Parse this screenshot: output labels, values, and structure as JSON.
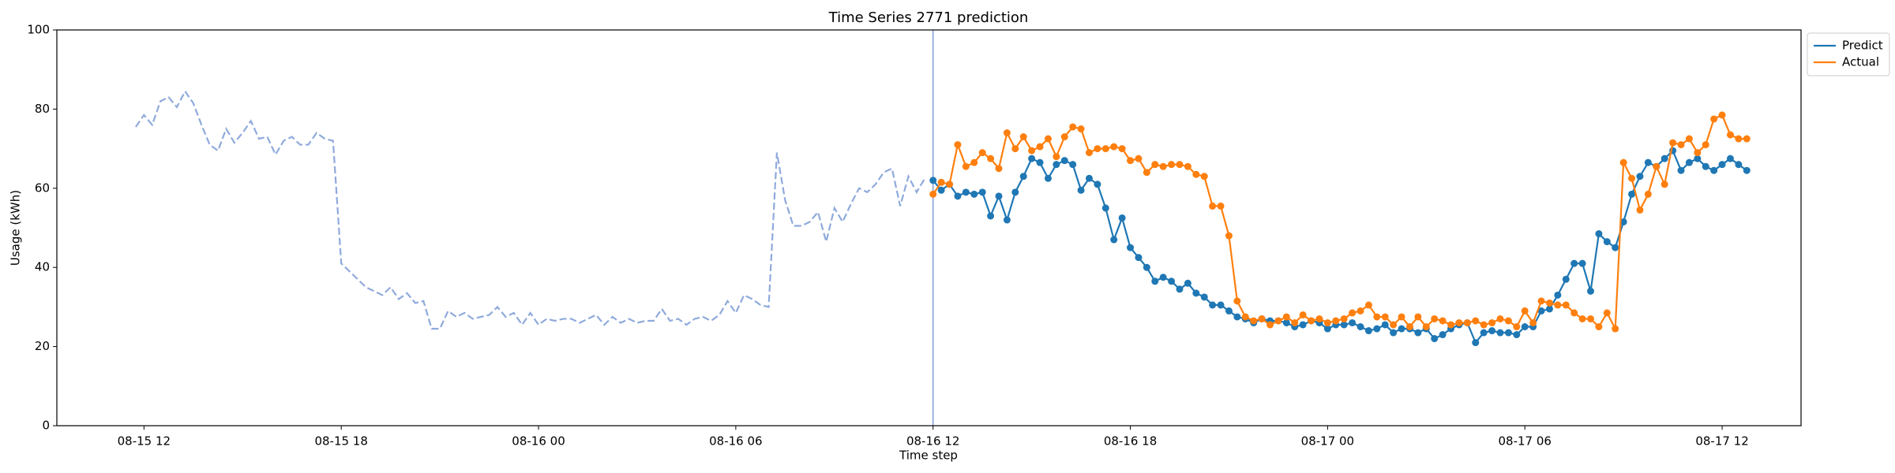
{
  "chart_data": {
    "type": "line",
    "title": "Time Series 2771 prediction",
    "x_label": "Time step",
    "y_label": "Usage (kWh)",
    "xlim": [
      9.35,
      62.4
    ],
    "ylim": [
      0,
      100
    ],
    "yticks": [
      0,
      20,
      40,
      60,
      80,
      100
    ],
    "xticks": [
      {
        "value": 12,
        "label": "08-15 12"
      },
      {
        "value": 18,
        "label": "08-15 18"
      },
      {
        "value": 24,
        "label": "08-16 00"
      },
      {
        "value": 30,
        "label": "08-16 06"
      },
      {
        "value": 36,
        "label": "08-16 12"
      },
      {
        "value": 42,
        "label": "08-16 18"
      },
      {
        "value": 48,
        "label": "08-17 00"
      },
      {
        "value": 54,
        "label": "08-17 06"
      },
      {
        "value": 60,
        "label": "08-17 12"
      }
    ],
    "vline": 36,
    "legend": "upper right outside",
    "history": {
      "color": "#8faadc",
      "linestyle": "dashed",
      "x": [
        11.75,
        12,
        12.25,
        12.5,
        12.75,
        13,
        13.25,
        13.5,
        13.75,
        14,
        14.25,
        14.5,
        14.75,
        15,
        15.25,
        15.5,
        15.75,
        16,
        16.25,
        16.5,
        16.75,
        17,
        17.25,
        17.5,
        17.75,
        18,
        18.25,
        18.5,
        18.75,
        19,
        19.25,
        19.5,
        19.75,
        20,
        20.25,
        20.5,
        20.75,
        21,
        21.25,
        21.5,
        21.75,
        22,
        22.25,
        22.5,
        22.75,
        23,
        23.25,
        23.5,
        23.75,
        24,
        24.25,
        24.5,
        24.75,
        25,
        25.25,
        25.5,
        25.75,
        26,
        26.25,
        26.5,
        26.75,
        27,
        27.25,
        27.5,
        27.75,
        28,
        28.25,
        28.5,
        28.75,
        29,
        29.25,
        29.5,
        29.75,
        30,
        30.25,
        30.5,
        30.75,
        31,
        31.25,
        31.5,
        31.75,
        32,
        32.25,
        32.5,
        32.75,
        33,
        33.25,
        33.5,
        33.75,
        34,
        34.25,
        34.5,
        34.75,
        35,
        35.25,
        35.5,
        35.75
      ],
      "values": [
        75.5,
        78.5,
        76,
        82,
        83,
        80.5,
        84.5,
        81.5,
        76,
        71,
        69.5,
        75,
        71.5,
        74,
        77,
        72.5,
        73,
        68.5,
        72,
        73,
        71,
        71,
        74,
        72.5,
        72,
        41,
        39,
        37,
        35,
        34,
        33,
        35,
        32,
        33.5,
        31,
        31.5,
        24.5,
        24.5,
        29,
        27.5,
        28.5,
        27,
        27.5,
        28,
        30,
        27.5,
        28.5,
        25.5,
        28.5,
        25.5,
        27,
        26.5,
        27,
        27,
        26,
        27,
        28,
        25.5,
        27.5,
        26,
        27,
        26,
        26.5,
        26.5,
        29.5,
        26.5,
        27,
        25.5,
        27,
        27.5,
        26.5,
        28,
        31.5,
        28.5,
        33,
        32,
        30.5,
        30,
        69,
        57,
        50.5,
        50.5,
        51.5,
        54,
        46.5,
        55,
        51.5,
        56,
        60,
        59,
        61,
        64,
        65,
        55.5,
        63,
        59,
        62.5
      ]
    },
    "series": [
      {
        "name": "Predict",
        "color": "#1f77b4",
        "marker": "o",
        "x": [
          36,
          36.25,
          36.5,
          36.75,
          37,
          37.25,
          37.5,
          37.75,
          38,
          38.25,
          38.5,
          38.75,
          39,
          39.25,
          39.5,
          39.75,
          40,
          40.25,
          40.5,
          40.75,
          41,
          41.25,
          41.5,
          41.75,
          42,
          42.25,
          42.5,
          42.75,
          43,
          43.25,
          43.5,
          43.75,
          44,
          44.25,
          44.5,
          44.75,
          45,
          45.25,
          45.5,
          45.75,
          46,
          46.25,
          46.5,
          46.75,
          47,
          47.25,
          47.5,
          47.75,
          48,
          48.25,
          48.5,
          48.75,
          49,
          49.25,
          49.5,
          49.75,
          50,
          50.25,
          50.5,
          50.75,
          51,
          51.25,
          51.5,
          51.75,
          52,
          52.25,
          52.5,
          52.75,
          53,
          53.25,
          53.5,
          53.75,
          54,
          54.25,
          54.5,
          54.75,
          55,
          55.25,
          55.5,
          55.75,
          56,
          56.25,
          56.5,
          56.75,
          57,
          57.25,
          57.5,
          57.75,
          58,
          58.25,
          58.5,
          58.75,
          59,
          59.25,
          59.5,
          59.75,
          60,
          60.25,
          60.5,
          60.75
        ],
        "values": [
          62,
          59.5,
          61,
          58,
          59,
          58.5,
          59,
          53,
          58,
          52,
          59,
          63,
          67.5,
          66.5,
          62.5,
          66,
          67,
          66,
          59.5,
          62.5,
          61,
          55,
          47,
          52.5,
          45,
          42.5,
          40,
          36.5,
          37.5,
          36.5,
          34.5,
          36,
          33.5,
          32.5,
          30.5,
          30.5,
          29,
          27.5,
          27,
          26,
          27,
          26.5,
          26.5,
          26,
          25,
          25.5,
          26.5,
          26,
          24.5,
          25.5,
          25.5,
          26,
          25,
          24,
          24.5,
          25.5,
          23.5,
          24.5,
          24.5,
          23.5,
          24.5,
          22,
          23,
          24.5,
          25.5,
          26,
          21,
          23.5,
          24,
          23.5,
          23.5,
          23,
          25,
          25,
          29,
          29.5,
          33,
          37,
          41,
          41,
          34,
          48.5,
          46.5,
          45,
          51.5,
          58.5,
          63,
          66.5,
          65.5,
          67.5,
          69.5,
          64.5,
          66.5,
          67.5,
          65.5,
          64.5,
          66,
          67.5,
          66,
          64.5
        ]
      },
      {
        "name": "Actual",
        "color": "#ff7f0e",
        "marker": "o",
        "x": [
          36,
          36.25,
          36.5,
          36.75,
          37,
          37.25,
          37.5,
          37.75,
          38,
          38.25,
          38.5,
          38.75,
          39,
          39.25,
          39.5,
          39.75,
          40,
          40.25,
          40.5,
          40.75,
          41,
          41.25,
          41.5,
          41.75,
          42,
          42.25,
          42.5,
          42.75,
          43,
          43.25,
          43.5,
          43.75,
          44,
          44.25,
          44.5,
          44.75,
          45,
          45.25,
          45.5,
          45.75,
          46,
          46.25,
          46.5,
          46.75,
          47,
          47.25,
          47.5,
          47.75,
          48,
          48.25,
          48.5,
          48.75,
          49,
          49.25,
          49.5,
          49.75,
          50,
          50.25,
          50.5,
          50.75,
          51,
          51.25,
          51.5,
          51.75,
          52,
          52.25,
          52.5,
          52.75,
          53,
          53.25,
          53.5,
          53.75,
          54,
          54.25,
          54.5,
          54.75,
          55,
          55.25,
          55.5,
          55.75,
          56,
          56.25,
          56.5,
          56.75,
          57,
          57.25,
          57.5,
          57.75,
          58,
          58.25,
          58.5,
          58.75,
          59,
          59.25,
          59.5,
          59.75,
          60,
          60.25,
          60.5,
          60.75
        ],
        "values": [
          58.5,
          61.5,
          61,
          71,
          65.5,
          66.5,
          69,
          67.5,
          65,
          74,
          70,
          73,
          69.5,
          70.5,
          72.5,
          68,
          73,
          75.5,
          75,
          69,
          70,
          70,
          70.5,
          70,
          67,
          67.5,
          64,
          66,
          65.5,
          66,
          66,
          65.5,
          63.5,
          63,
          55.5,
          55.5,
          48,
          31.5,
          27.5,
          26.5,
          27,
          25.5,
          26.5,
          27.5,
          26,
          28,
          26.5,
          27,
          26,
          26.5,
          27,
          28.5,
          29,
          30.5,
          27.5,
          27.5,
          25.5,
          27.5,
          25,
          27.5,
          25,
          27,
          26.5,
          25.5,
          26,
          26,
          26.5,
          25.5,
          26,
          27,
          26.5,
          25,
          29,
          26,
          31.5,
          31,
          30.5,
          30.5,
          28.5,
          27,
          27,
          25,
          28.5,
          24.5,
          66.5,
          62.5,
          54.5,
          58.5,
          65.5,
          61,
          71.5,
          71,
          72.5,
          69,
          71,
          77.5,
          78.5,
          73.5,
          72.5,
          72.5
        ]
      }
    ]
  }
}
